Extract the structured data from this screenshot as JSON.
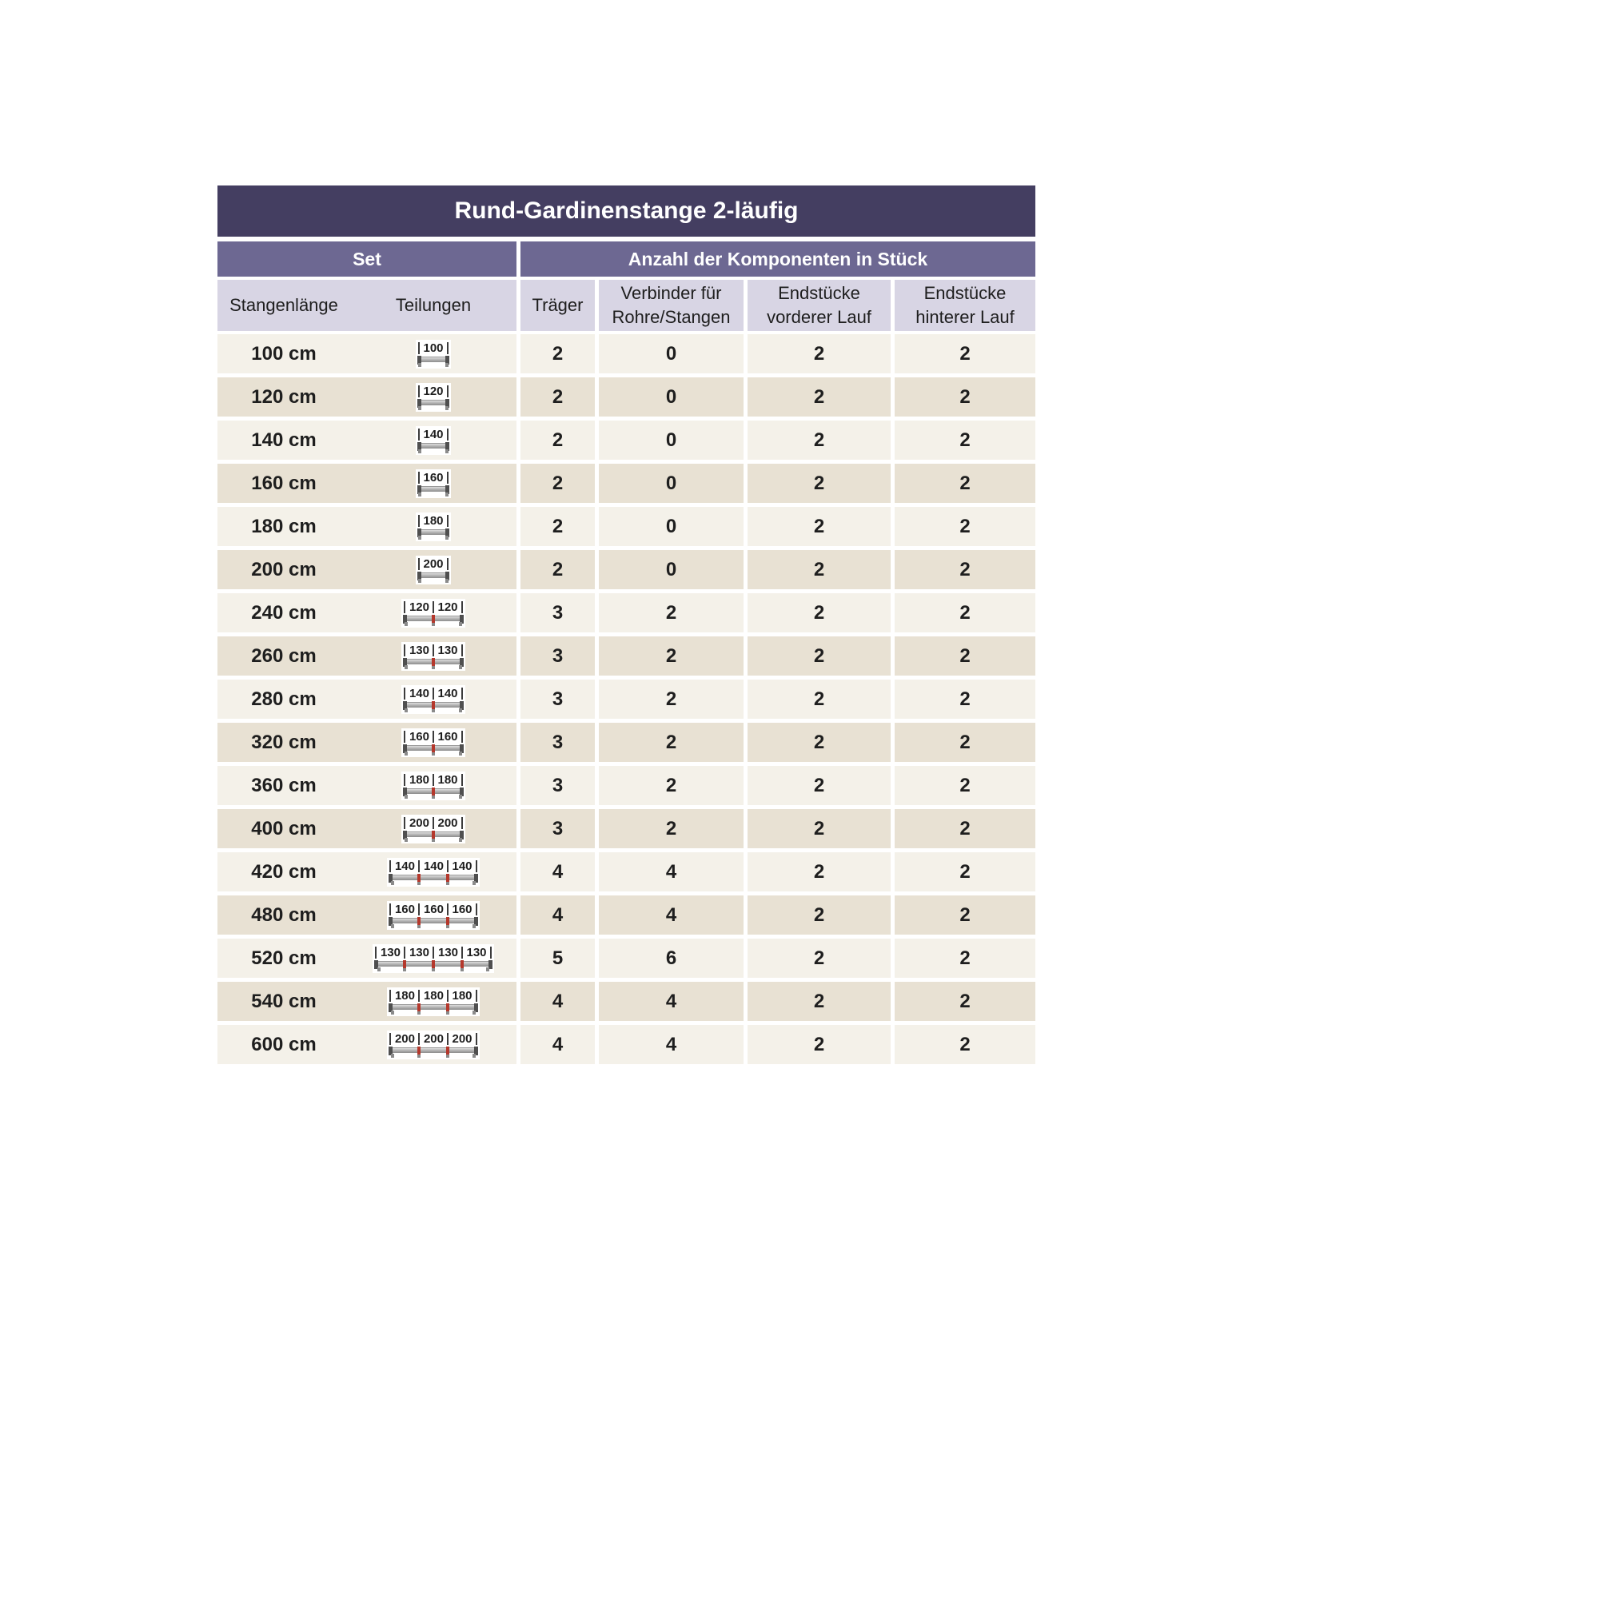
{
  "title": "Rund-Gardinenstange 2-läufig",
  "colors": {
    "title_bg": "#443e61",
    "subheader_bg": "#6d6892",
    "column_header_bg": "#d8d5e4",
    "row_light": "#f4f1e9",
    "row_dark": "#e8e1d3",
    "text_dark": "#1e1e1e",
    "connector_red": "#b5382c"
  },
  "section_headers": {
    "set": "Set",
    "components": "Anzahl der Komponenten in Stück"
  },
  "column_headers": {
    "length": "Stangenlänge",
    "divisions": "Teilungen",
    "traeger": "Träger",
    "verbinder_l1": "Verbinder für",
    "verbinder_l2": "Rohre/Stangen",
    "end_front_l1": "Endstücke",
    "end_front_l2": "vorderer Lauf",
    "end_rear_l1": "Endstücke",
    "end_rear_l2": "hinterer Lauf"
  },
  "chart_data": {
    "type": "table",
    "title": "Rund-Gardinenstange 2-läufig",
    "column_groups": [
      "Set",
      "Anzahl der Komponenten in Stück"
    ],
    "columns": [
      "Stangenlänge",
      "Teilungen",
      "Träger",
      "Verbinder für Rohre/Stangen",
      "Endstücke vorderer Lauf",
      "Endstücke hinterer Lauf"
    ],
    "rows": [
      {
        "length": "100 cm",
        "segments": [
          "100"
        ],
        "traeger": "2",
        "verbinder": "0",
        "end_front": "2",
        "end_rear": "2"
      },
      {
        "length": "120 cm",
        "segments": [
          "120"
        ],
        "traeger": "2",
        "verbinder": "0",
        "end_front": "2",
        "end_rear": "2"
      },
      {
        "length": "140 cm",
        "segments": [
          "140"
        ],
        "traeger": "2",
        "verbinder": "0",
        "end_front": "2",
        "end_rear": "2"
      },
      {
        "length": "160 cm",
        "segments": [
          "160"
        ],
        "traeger": "2",
        "verbinder": "0",
        "end_front": "2",
        "end_rear": "2"
      },
      {
        "length": "180 cm",
        "segments": [
          "180"
        ],
        "traeger": "2",
        "verbinder": "0",
        "end_front": "2",
        "end_rear": "2"
      },
      {
        "length": "200 cm",
        "segments": [
          "200"
        ],
        "traeger": "2",
        "verbinder": "0",
        "end_front": "2",
        "end_rear": "2"
      },
      {
        "length": "240 cm",
        "segments": [
          "120",
          "120"
        ],
        "traeger": "3",
        "verbinder": "2",
        "end_front": "2",
        "end_rear": "2"
      },
      {
        "length": "260 cm",
        "segments": [
          "130",
          "130"
        ],
        "traeger": "3",
        "verbinder": "2",
        "end_front": "2",
        "end_rear": "2"
      },
      {
        "length": "280 cm",
        "segments": [
          "140",
          "140"
        ],
        "traeger": "3",
        "verbinder": "2",
        "end_front": "2",
        "end_rear": "2"
      },
      {
        "length": "320 cm",
        "segments": [
          "160",
          "160"
        ],
        "traeger": "3",
        "verbinder": "2",
        "end_front": "2",
        "end_rear": "2"
      },
      {
        "length": "360 cm",
        "segments": [
          "180",
          "180"
        ],
        "traeger": "3",
        "verbinder": "2",
        "end_front": "2",
        "end_rear": "2"
      },
      {
        "length": "400 cm",
        "segments": [
          "200",
          "200"
        ],
        "traeger": "3",
        "verbinder": "2",
        "end_front": "2",
        "end_rear": "2"
      },
      {
        "length": "420 cm",
        "segments": [
          "140",
          "140",
          "140"
        ],
        "traeger": "4",
        "verbinder": "4",
        "end_front": "2",
        "end_rear": "2"
      },
      {
        "length": "480 cm",
        "segments": [
          "160",
          "160",
          "160"
        ],
        "traeger": "4",
        "verbinder": "4",
        "end_front": "2",
        "end_rear": "2"
      },
      {
        "length": "520 cm",
        "segments": [
          "130",
          "130",
          "130",
          "130"
        ],
        "traeger": "5",
        "verbinder": "6",
        "end_front": "2",
        "end_rear": "2"
      },
      {
        "length": "540 cm",
        "segments": [
          "180",
          "180",
          "180"
        ],
        "traeger": "4",
        "verbinder": "4",
        "end_front": "2",
        "end_rear": "2"
      },
      {
        "length": "600 cm",
        "segments": [
          "200",
          "200",
          "200"
        ],
        "traeger": "4",
        "verbinder": "4",
        "end_front": "2",
        "end_rear": "2"
      }
    ]
  }
}
